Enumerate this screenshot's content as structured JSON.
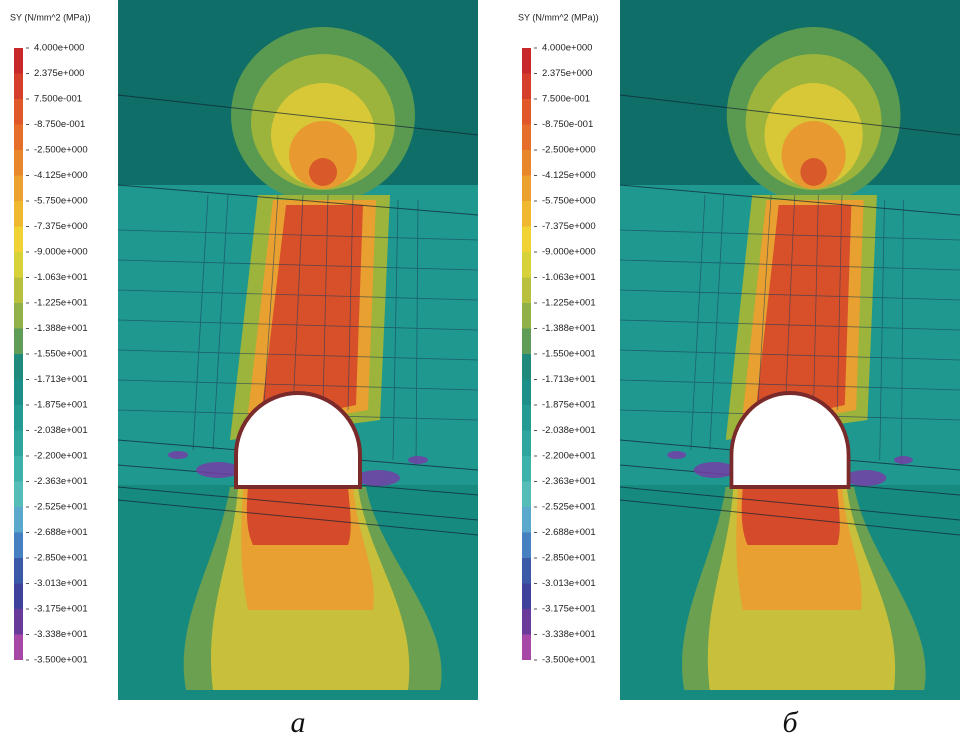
{
  "panels": [
    {
      "legend": {
        "title": "SY (N/mm^2 (MPa))",
        "labels": [
          "4.000e+000",
          "2.375e+000",
          "7.500e-001",
          "-8.750e-001",
          "-2.500e+000",
          "-4.125e+000",
          "-5.750e+000",
          "-7.375e+000",
          "-9.000e+000",
          "-1.063e+001",
          "-1.225e+001",
          "-1.388e+001",
          "-1.550e+001",
          "-1.713e+001",
          "-1.875e+001",
          "-2.038e+001",
          "-2.200e+001",
          "-2.363e+001",
          "-2.525e+001",
          "-2.688e+001",
          "-2.850e+001",
          "-3.013e+001",
          "-3.175e+001",
          "-3.338e+001",
          "-3.500e+001"
        ],
        "colors": [
          "#c8282a",
          "#d43e2a",
          "#e0582a",
          "#e56e2a",
          "#e8862c",
          "#eca02e",
          "#f0b830",
          "#f0d234",
          "#d8d23a",
          "#b8c03e",
          "#90b048",
          "#5e9c58",
          "#1f8a7c",
          "#1c9088",
          "#239a92",
          "#2ea69e",
          "#3cb2aa",
          "#56bcb8",
          "#5aa8cc",
          "#4680c0",
          "#3a5aa8",
          "#3e429a",
          "#6a3a9a",
          "#a848a6"
        ]
      },
      "caption": "а"
    },
    {
      "legend": {
        "title": "SY (N/mm^2 (MPa))",
        "labels": [
          "4.000e+000",
          "2.375e+000",
          "7.500e-001",
          "-8.750e-001",
          "-2.500e+000",
          "-4.125e+000",
          "-5.750e+000",
          "-7.375e+000",
          "-9.000e+000",
          "-1.063e+001",
          "-1.225e+001",
          "-1.388e+001",
          "-1.550e+001",
          "-1.713e+001",
          "-1.875e+001",
          "-2.038e+001",
          "-2.200e+001",
          "-2.363e+001",
          "-2.525e+001",
          "-2.688e+001",
          "-2.850e+001",
          "-3.013e+001",
          "-3.175e+001",
          "-3.338e+001",
          "-3.500e+001"
        ],
        "colors": [
          "#c8282a",
          "#d43e2a",
          "#e0582a",
          "#e56e2a",
          "#e8862c",
          "#eca02e",
          "#f0b830",
          "#f0d234",
          "#d8d23a",
          "#b8c03e",
          "#90b048",
          "#5e9c58",
          "#1f8a7c",
          "#1c9088",
          "#239a92",
          "#2ea69e",
          "#3cb2aa",
          "#56bcb8",
          "#5aa8cc",
          "#4680c0",
          "#3a5aa8",
          "#3e429a",
          "#6a3a9a",
          "#a848a6"
        ]
      },
      "caption": "б"
    }
  ]
}
